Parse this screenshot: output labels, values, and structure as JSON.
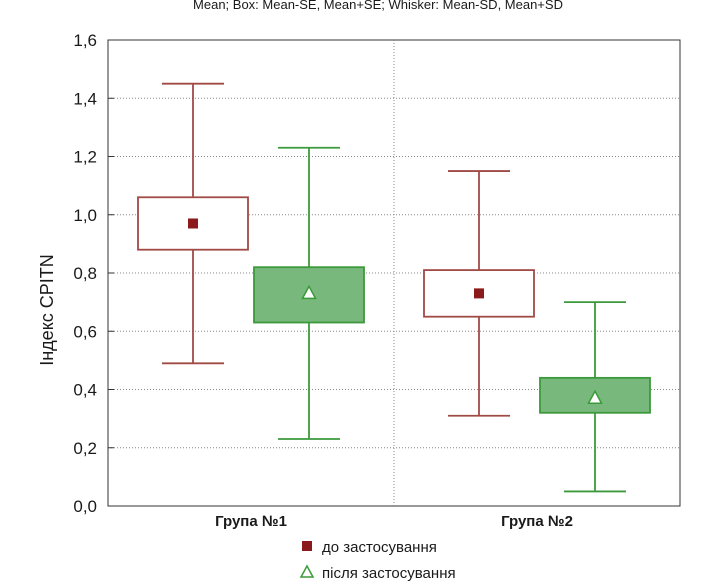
{
  "chart_data": {
    "type": "box",
    "title": "Mean; Box: Mean-SE, Mean+SE; Whisker: Mean-SD, Mean+SD",
    "ylabel": "Індекс CPITN",
    "xlabel": "",
    "ylim": [
      0.0,
      1.6
    ],
    "yticks": [
      "0,0",
      "0,2",
      "0,4",
      "0,6",
      "0,8",
      "1,0",
      "1,2",
      "1,4",
      "1,6"
    ],
    "grid": true,
    "legend_position": "bottom",
    "categories": [
      "Група №1",
      "Група №2"
    ],
    "series": [
      {
        "name": "до застосування",
        "marker": "square",
        "color": "#8b1a1a",
        "fill": "#ffffff",
        "stroke": "#a04a45",
        "mean": [
          0.97,
          0.73
        ],
        "box_low": [
          0.88,
          0.65
        ],
        "box_high": [
          1.06,
          0.81
        ],
        "whisker_low": [
          0.49,
          0.31
        ],
        "whisker_high": [
          1.45,
          1.15
        ]
      },
      {
        "name": "після застосування",
        "marker": "triangle",
        "color": "#3a9a3a",
        "fill": "#79b87c",
        "stroke": "#3c9a3c",
        "mean": [
          0.73,
          0.37
        ],
        "box_low": [
          0.63,
          0.32
        ],
        "box_high": [
          0.82,
          0.44
        ],
        "whisker_low": [
          0.23,
          0.05
        ],
        "whisker_high": [
          1.23,
          0.7
        ]
      }
    ]
  }
}
